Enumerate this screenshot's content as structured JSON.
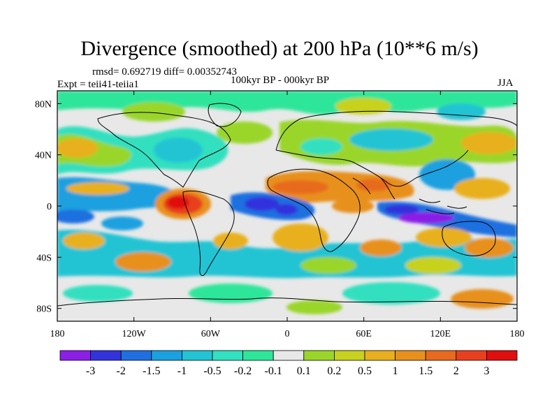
{
  "title": "Divergence (smoothed) at 200 hPa (10**6 m/s)",
  "stats": "rmsd= 0.692719 diff= 0.00352743",
  "experiment": "Expt = teii41-teiia1",
  "period": "100kyr BP - 000kyr BP",
  "season": "JJA",
  "map": {
    "lon_ticks": [
      "180",
      "120W",
      "60W",
      "0",
      "60E",
      "120E",
      "180"
    ],
    "lat_ticks": [
      "80N",
      "40N",
      "0",
      "40S",
      "80S"
    ]
  },
  "colorbar": {
    "labels": [
      "-3",
      "-2",
      "-1.5",
      "-1",
      "-0.5",
      "-0.2",
      "-0.1",
      "0.1",
      "0.2",
      "0.5",
      "1",
      "1.5",
      "2",
      "3"
    ],
    "colors": [
      "#8b1fe6",
      "#3333dd",
      "#1f6fe0",
      "#1ba0e0",
      "#22c4d4",
      "#33e0c0",
      "#2ee69a",
      "#e8e8e8",
      "#9ad62a",
      "#c8d11f",
      "#e8b01e",
      "#e8901e",
      "#e86a1e",
      "#e8401e",
      "#e00f0f"
    ]
  }
}
